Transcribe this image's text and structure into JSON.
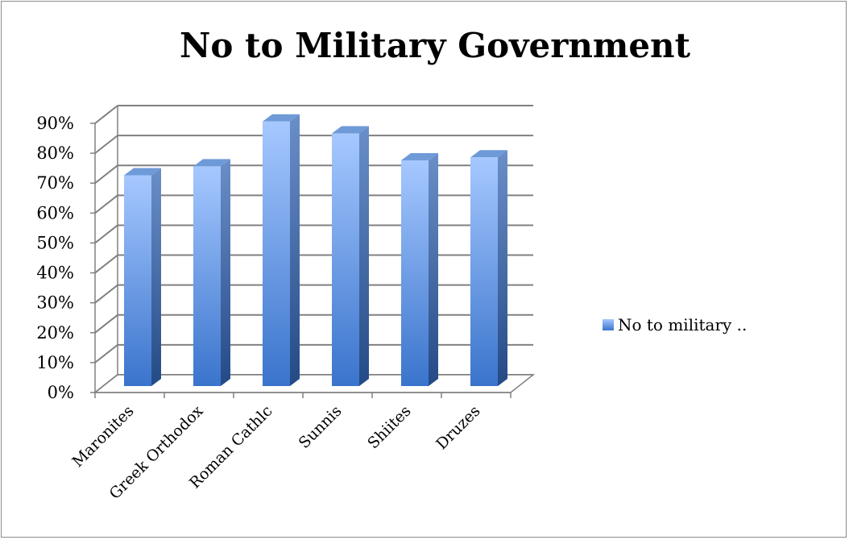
{
  "chart_data": {
    "type": "bar",
    "title": "No to Military Government",
    "categories": [
      "Maronites",
      "Greek Orthodox",
      "Roman Cathlc",
      "Sunnis",
      "Shiites",
      "Druzes"
    ],
    "series": [
      {
        "name": "No to military ..",
        "values": [
          71,
          74,
          89,
          85,
          76,
          77
        ]
      }
    ],
    "ylim": [
      0,
      90
    ],
    "yticks": [
      "0%",
      "10%",
      "20%",
      "30%",
      "40%",
      "50%",
      "60%",
      "70%",
      "80%",
      "90%"
    ],
    "grid": true,
    "legend_position": "right",
    "style_3d": true,
    "colors": {
      "bar_light": "#a6c8ff",
      "bar_dark": "#3a74cc",
      "bar_side": "#2e5a9e",
      "bar_top": "#6f9ad8",
      "grid": "#808080"
    }
  }
}
